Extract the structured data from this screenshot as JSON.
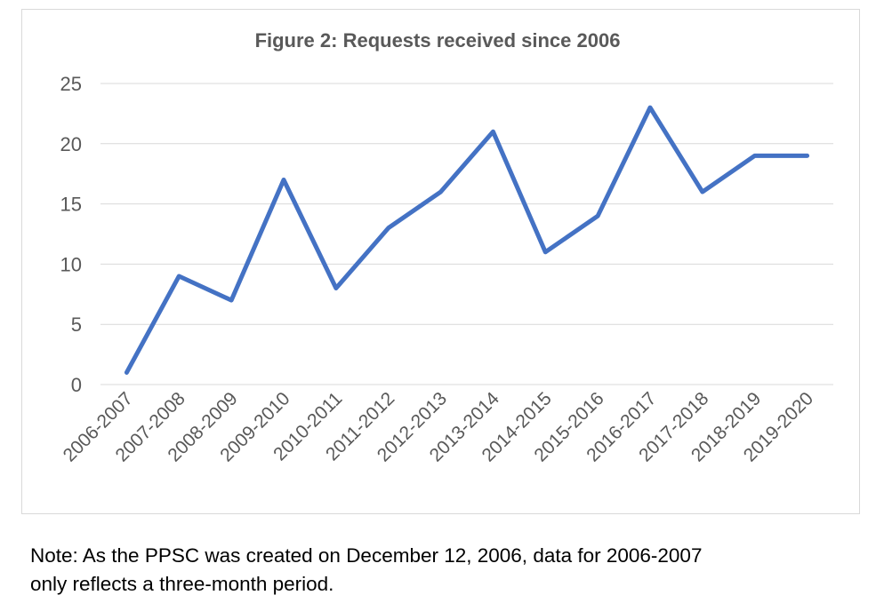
{
  "chart_data": {
    "type": "line",
    "title": "Figure 2: Requests received since 2006",
    "categories": [
      "2006-2007",
      "2007-2008",
      "2008-2009",
      "2009-2010",
      "2010-2011",
      "2011-2012",
      "2012-2013",
      "2013-2014",
      "2014-2015",
      "2015-2016",
      "2016-2017",
      "2017-2018",
      "2018-2019",
      "2019-2020"
    ],
    "values": [
      1,
      9,
      7,
      17,
      8,
      13,
      16,
      21,
      11,
      14,
      23,
      16,
      19,
      19
    ],
    "ylim": [
      0,
      25
    ],
    "yticks": [
      0,
      5,
      10,
      15,
      20,
      25
    ],
    "grid": true,
    "legend": "none",
    "line_color": "#4472C4"
  },
  "note": {
    "line1": "Note: As the PPSC was created on December 12, 2006, data for 2006-2007",
    "line2": "only reflects a three-month period."
  }
}
